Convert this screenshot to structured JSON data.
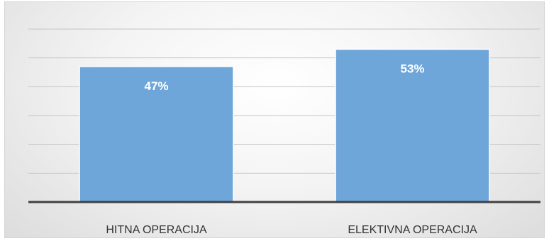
{
  "chart_data": {
    "type": "bar",
    "categories": [
      "HITNA OPERACIJA",
      "ELEKTIVNA OPERACIJA"
    ],
    "values": [
      47,
      53
    ],
    "data_labels": [
      "47%",
      "53%"
    ],
    "title": "",
    "xlabel": "",
    "ylabel": "",
    "ylim": [
      0,
      60
    ],
    "grid": true,
    "legend": "none",
    "bar_color": "#6fa6da",
    "axis_color": "#404040"
  }
}
